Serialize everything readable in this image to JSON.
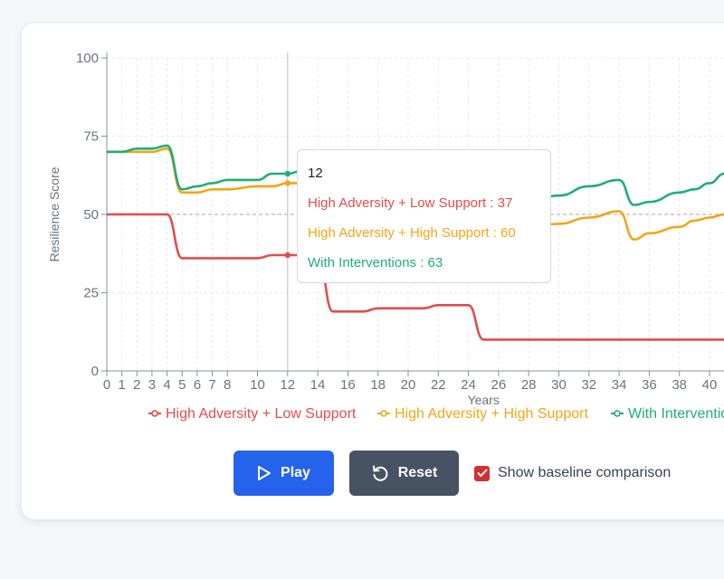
{
  "chart_data": {
    "type": "line",
    "xlabel": "Years",
    "ylabel": "Resilience Score",
    "ylim": [
      0,
      100
    ],
    "yticks": [
      0,
      25,
      50,
      75,
      100
    ],
    "xticks": [
      0,
      1,
      2,
      3,
      4,
      5,
      6,
      7,
      8,
      10,
      12,
      14,
      16,
      18,
      20,
      22,
      24,
      26,
      28,
      30,
      32,
      34,
      36,
      38,
      40
    ],
    "xlim": [
      0,
      41
    ],
    "baseline": 50,
    "grid": true,
    "legend_position": "bottom",
    "series": [
      {
        "name": "High Adversity + Low Support",
        "color": "#e34c4c",
        "x": [
          0,
          1,
          2,
          3,
          4,
          5,
          6,
          7,
          8,
          10,
          11,
          12,
          13,
          14,
          15,
          16,
          17,
          18,
          19,
          20,
          21,
          22,
          23,
          24,
          25,
          26,
          28,
          30,
          32,
          34,
          36,
          38,
          40,
          41
        ],
        "y": [
          50,
          50,
          50,
          50,
          50,
          36,
          36,
          36,
          36,
          36,
          37,
          37,
          37,
          37,
          19,
          19,
          19,
          20,
          20,
          20,
          20,
          21,
          21,
          21,
          10,
          10,
          10,
          10,
          10,
          10,
          10,
          10,
          10,
          10
        ]
      },
      {
        "name": "High Adversity + High Support",
        "color": "#f2a516",
        "x": [
          0,
          1,
          2,
          3,
          4,
          5,
          6,
          7,
          8,
          10,
          11,
          12,
          13,
          28,
          30,
          32,
          34,
          35,
          36,
          38,
          39,
          40,
          41
        ],
        "y": [
          70,
          70,
          70,
          70,
          71,
          57,
          57,
          58,
          58,
          59,
          59,
          60,
          60,
          46,
          47,
          49,
          51,
          42,
          44,
          46,
          48,
          49,
          50
        ]
      },
      {
        "name": "With Interventions",
        "color": "#1fae74",
        "x": [
          0,
          1,
          2,
          3,
          4,
          5,
          6,
          7,
          8,
          10,
          11,
          12,
          13,
          28,
          30,
          32,
          34,
          35,
          36,
          38,
          39,
          40,
          41
        ],
        "y": [
          70,
          70,
          71,
          71,
          72,
          58,
          59,
          60,
          61,
          61,
          63,
          63,
          64,
          54,
          56,
          59,
          61,
          53,
          54,
          57,
          58,
          60,
          63
        ]
      }
    ]
  },
  "tooltip": {
    "title": "12",
    "lines": [
      "High Adversity + Low Support : 37",
      "High Adversity + High Support : 60",
      "With Interventions : 63"
    ]
  },
  "controls": {
    "play_label": "Play",
    "reset_label": "Reset",
    "baseline_label": "Show baseline comparison",
    "baseline_checked": true
  }
}
